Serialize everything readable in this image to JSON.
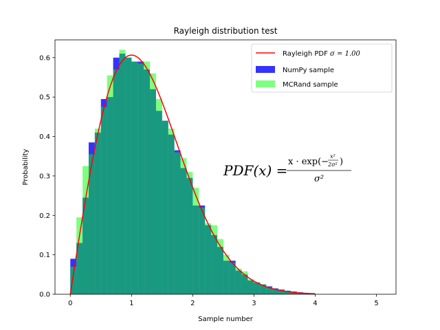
{
  "chart_data": {
    "type": "bar",
    "title": "Rayleigh distribution test",
    "xlabel": "Sample number",
    "ylabel": "Probability",
    "xlim": [
      -0.25,
      5.32
    ],
    "ylim": [
      0.0,
      0.645
    ],
    "xticks": [
      0,
      1,
      2,
      3,
      4,
      5
    ],
    "yticks": [
      0.0,
      0.1,
      0.2,
      0.3,
      0.4,
      0.5,
      0.6
    ],
    "ytick_labels": [
      "0.0",
      "0.1",
      "0.2",
      "0.3",
      "0.4",
      "0.5",
      "0.6"
    ],
    "grid": false,
    "legend_position": "top-right",
    "bin_width": 0.1,
    "series": [
      {
        "name": "NumPy sample",
        "kind": "hist",
        "color": "#0000ff",
        "alpha": 0.8,
        "bin_starts": [
          0.0,
          0.1,
          0.2,
          0.3,
          0.4,
          0.5,
          0.6,
          0.7,
          0.8,
          0.9,
          1.0,
          1.1,
          1.2,
          1.3,
          1.4,
          1.5,
          1.6,
          1.7,
          1.8,
          1.9,
          2.0,
          2.1,
          2.2,
          2.3,
          2.4,
          2.5,
          2.6,
          2.7,
          2.8,
          2.9,
          3.0,
          3.1,
          3.2,
          3.3,
          3.4,
          3.5,
          3.6,
          3.7,
          3.8,
          3.9
        ],
        "values": [
          0.09,
          0.13,
          0.245,
          0.385,
          0.41,
          0.495,
          0.5,
          0.6,
          0.61,
          0.6,
          0.59,
          0.59,
          0.57,
          0.52,
          0.465,
          0.44,
          0.405,
          0.365,
          0.32,
          0.295,
          0.225,
          0.225,
          0.175,
          0.15,
          0.12,
          0.085,
          0.085,
          0.06,
          0.05,
          0.035,
          0.03,
          0.025,
          0.02,
          0.015,
          0.012,
          0.009,
          0.007,
          0.005,
          0.003,
          0.002
        ]
      },
      {
        "name": "MCRand sample",
        "kind": "hist",
        "color": "#00ff00",
        "alpha": 0.5,
        "bin_starts": [
          0.0,
          0.1,
          0.2,
          0.3,
          0.4,
          0.5,
          0.6,
          0.7,
          0.8,
          0.9,
          1.0,
          1.1,
          1.2,
          1.3,
          1.4,
          1.5,
          1.6,
          1.7,
          1.8,
          1.9,
          2.0,
          2.1,
          2.2,
          2.3,
          2.4,
          2.5,
          2.6,
          2.7,
          2.8,
          2.9,
          3.0,
          3.1,
          3.2,
          3.3,
          3.4,
          3.5,
          3.6,
          3.7,
          3.8,
          3.9
        ],
        "values": [
          0.07,
          0.195,
          0.325,
          0.355,
          0.42,
          0.475,
          0.555,
          0.57,
          0.62,
          0.6,
          0.59,
          0.585,
          0.59,
          0.56,
          0.495,
          0.44,
          0.42,
          0.36,
          0.345,
          0.31,
          0.27,
          0.22,
          0.18,
          0.175,
          0.14,
          0.1,
          0.08,
          0.065,
          0.058,
          0.038,
          0.03,
          0.025,
          0.018,
          0.014,
          0.011,
          0.008,
          0.006,
          0.004,
          0.003,
          0.002
        ]
      },
      {
        "name": "Rayleigh PDF σ = 1.00",
        "kind": "line",
        "color": "#ff0000",
        "sigma": 1.0,
        "x_range": [
          0.0,
          4.0
        ]
      }
    ],
    "annotations": [
      {
        "text": "PDF(x) = x · exp(−x²/(2σ²)) / σ²",
        "lhs": "PDF(x) =",
        "numerator_prefix": "x · exp(−",
        "numerator_frac_num": "x²",
        "numerator_frac_den": "2σ²",
        "numerator_suffix": ")",
        "denominator": "σ²"
      }
    ],
    "legend": {
      "items": [
        {
          "label_prefix": "Rayleigh PDF ",
          "label_math": "σ = 1.00",
          "swatch": "line",
          "color": "#ff0000"
        },
        {
          "label_prefix": "NumPy sample",
          "label_math": "",
          "swatch": "patch",
          "color": "#3333ff"
        },
        {
          "label_prefix": "MCRand sample",
          "label_math": "",
          "swatch": "patch",
          "color": "#7fff7f"
        }
      ]
    }
  }
}
